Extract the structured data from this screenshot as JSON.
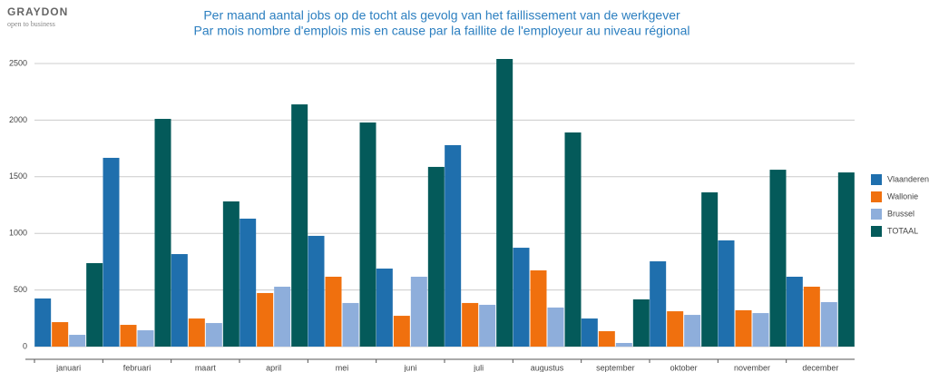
{
  "logo": "GRAYDON",
  "tagline": "open to business",
  "chart_data": {
    "type": "bar",
    "title": "Per maand aantal jobs op de tocht als gevolg van het faillissement van de werkgever",
    "subtitle": "Par mois nombre d'emplois mis en cause par la faillite de l'employeur au niveau régional",
    "categories": [
      "januari",
      "februari",
      "maart",
      "april",
      "mei",
      "juni",
      "juli",
      "augustus",
      "september",
      "oktober",
      "november",
      "december"
    ],
    "series": [
      {
        "name": "Vlaanderen",
        "color": "#1f6fad",
        "values": [
          425,
          1667,
          817,
          1130,
          978,
          689,
          1779,
          873,
          248,
          753,
          938,
          617
        ]
      },
      {
        "name": "Wallonie",
        "color": "#f0700e",
        "values": [
          216,
          192,
          248,
          473,
          617,
          272,
          385,
          673,
          136,
          312,
          321,
          529
        ]
      },
      {
        "name": "Brussel",
        "color": "#8eaedb",
        "values": [
          104,
          144,
          208,
          529,
          385,
          617,
          369,
          345,
          32,
          280,
          296,
          393
        ]
      },
      {
        "name": "TOTAAL",
        "color": "#045a5a",
        "values": [
          737,
          2011,
          1282,
          2139,
          1979,
          1587,
          2540,
          1891,
          417,
          1362,
          1562,
          1538
        ]
      }
    ],
    "ylim": [
      0,
      2500
    ],
    "yticks": [
      0,
      500,
      1000,
      1500,
      2000,
      2500
    ],
    "grid": true,
    "legend": "right"
  }
}
